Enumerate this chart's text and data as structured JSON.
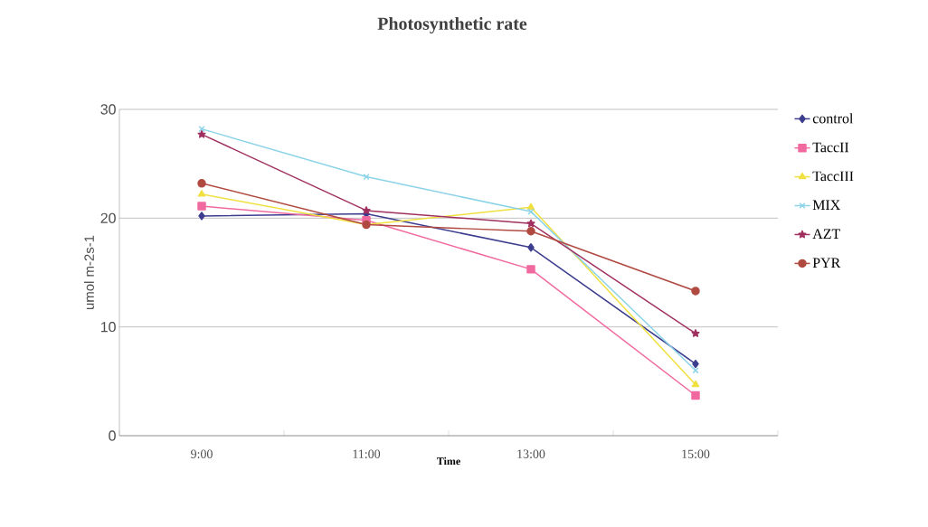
{
  "chart_data": {
    "type": "line",
    "title": "Photosynthetic rate",
    "xlabel": "Time",
    "ylabel": "umol m-2s-1",
    "categories": [
      "9:00",
      "11:00",
      "13:00",
      "15:00"
    ],
    "ylim": [
      0,
      30
    ],
    "yticks": [
      0,
      10,
      20,
      30
    ],
    "grid": "y",
    "legend": "right",
    "series": [
      {
        "name": "control",
        "color": "#3d3d8f",
        "marker": "diamond",
        "values": [
          20.2,
          20.4,
          17.3,
          6.6
        ]
      },
      {
        "name": "TaccII",
        "color": "#f06aa0",
        "marker": "square",
        "values": [
          21.1,
          19.8,
          15.3,
          3.7
        ]
      },
      {
        "name": "TaccIII",
        "color": "#f0e040",
        "marker": "triangle",
        "values": [
          22.2,
          19.4,
          21.0,
          4.7
        ]
      },
      {
        "name": "MIX",
        "color": "#8cd3e8",
        "marker": "cross",
        "values": [
          28.2,
          23.8,
          20.6,
          6.0
        ]
      },
      {
        "name": "AZT",
        "color": "#a0305f",
        "marker": "star",
        "values": [
          27.7,
          20.7,
          19.5,
          9.4
        ]
      },
      {
        "name": "PYR",
        "color": "#b04a40",
        "marker": "circle",
        "values": [
          23.2,
          19.4,
          18.8,
          13.3
        ]
      }
    ]
  }
}
